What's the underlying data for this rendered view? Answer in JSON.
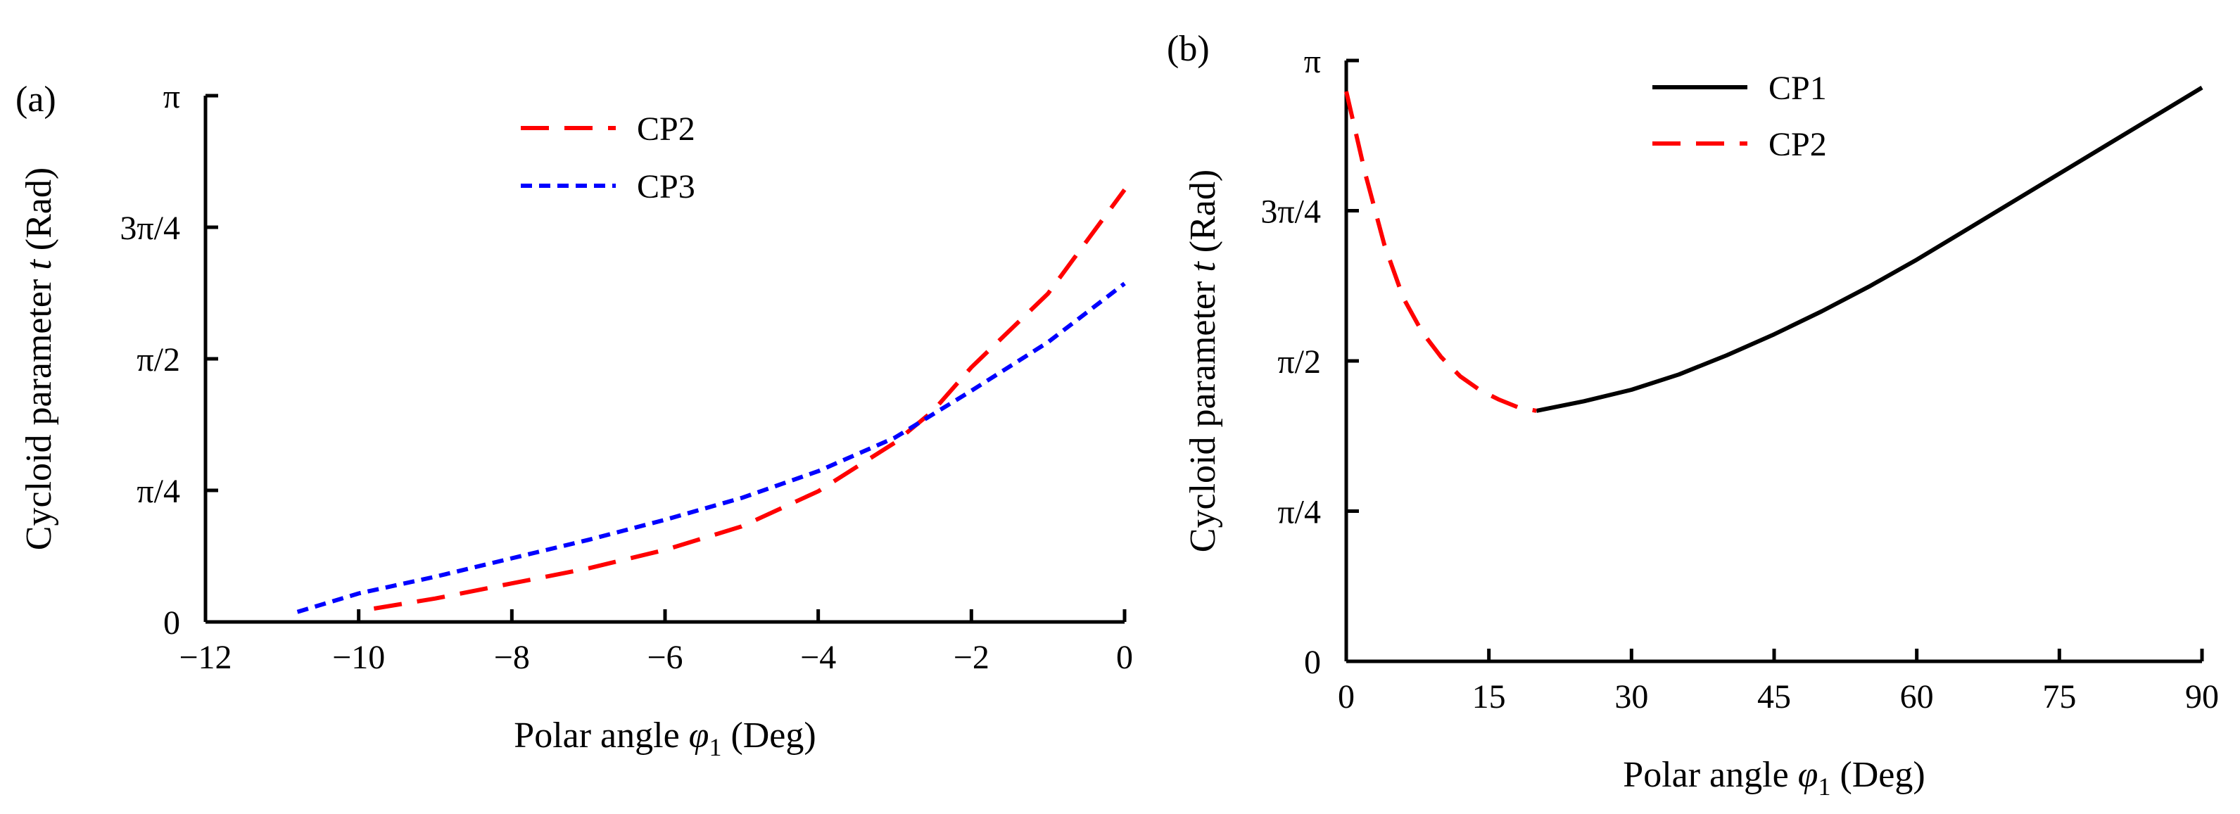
{
  "chart_data": [
    {
      "id": "a",
      "type": "line",
      "panel_label": "(a)",
      "xlabel": {
        "prefix": "Polar angle ",
        "symbol": "φ",
        "subscript": "1",
        "suffix": " (Deg)"
      },
      "ylabel": {
        "prefix": "Cycloid parameter ",
        "symbol": "t",
        "suffix": " (Rad)"
      },
      "xlim": [
        -12,
        0
      ],
      "ylim": [
        0,
        3.14159
      ],
      "xticks": [
        {
          "value": -12,
          "label": "−12"
        },
        {
          "value": -10,
          "label": "−10"
        },
        {
          "value": -8,
          "label": "−8"
        },
        {
          "value": -6,
          "label": "−6"
        },
        {
          "value": -4,
          "label": "−4"
        },
        {
          "value": -2,
          "label": "−2"
        },
        {
          "value": 0,
          "label": "0"
        }
      ],
      "yticks": [
        {
          "value": 0,
          "label": "0"
        },
        {
          "value": 0.7854,
          "label": "π/4"
        },
        {
          "value": 1.5708,
          "label": "π/2"
        },
        {
          "value": 2.3562,
          "label": "3π/4"
        },
        {
          "value": 3.14159,
          "label": "π"
        }
      ],
      "legend_position": "top-center",
      "series": [
        {
          "name": "CP2",
          "color": "#ff0000",
          "style": "long-dash",
          "x": [
            -9.8,
            -9.0,
            -8.0,
            -7.0,
            -6.0,
            -5.0,
            -4.0,
            -3.0,
            -2.5,
            -2.0,
            -1.0,
            0.0
          ],
          "y": [
            0.08,
            0.14,
            0.23,
            0.32,
            0.43,
            0.57,
            0.78,
            1.07,
            1.26,
            1.52,
            1.96,
            2.58
          ]
        },
        {
          "name": "CP3",
          "color": "#0000ff",
          "style": "short-dash",
          "x": [
            -10.8,
            -10.0,
            -9.0,
            -8.0,
            -7.0,
            -6.0,
            -5.0,
            -4.0,
            -3.0,
            -2.0,
            -1.0,
            0.0
          ],
          "y": [
            0.06,
            0.17,
            0.27,
            0.38,
            0.49,
            0.61,
            0.74,
            0.9,
            1.1,
            1.38,
            1.67,
            2.02
          ]
        }
      ]
    },
    {
      "id": "b",
      "type": "line",
      "panel_label": "(b)",
      "xlabel": {
        "prefix": "Polar angle ",
        "symbol": "φ",
        "subscript": "1",
        "suffix": " (Deg)"
      },
      "ylabel": {
        "prefix": "Cycloid parameter ",
        "symbol": "t",
        "suffix": " (Rad)"
      },
      "xlim": [
        0,
        90
      ],
      "ylim": [
        0,
        3.14159
      ],
      "xticks": [
        {
          "value": 0,
          "label": "0"
        },
        {
          "value": 15,
          "label": "15"
        },
        {
          "value": 30,
          "label": "30"
        },
        {
          "value": 45,
          "label": "45"
        },
        {
          "value": 60,
          "label": "60"
        },
        {
          "value": 75,
          "label": "75"
        },
        {
          "value": 90,
          "label": "90"
        }
      ],
      "yticks": [
        {
          "value": 0,
          "label": "0"
        },
        {
          "value": 0.7854,
          "label": "π/4"
        },
        {
          "value": 1.5708,
          "label": "π/2"
        },
        {
          "value": 2.3562,
          "label": "3π/4"
        },
        {
          "value": 3.14159,
          "label": "π"
        }
      ],
      "legend_position": "top-center",
      "series": [
        {
          "name": "CP1",
          "color": "#000000",
          "style": "solid",
          "x": [
            20,
            25,
            30,
            35,
            40,
            45,
            50,
            55,
            60,
            65,
            70,
            75,
            80,
            85,
            90
          ],
          "y": [
            1.31,
            1.36,
            1.42,
            1.5,
            1.6,
            1.71,
            1.83,
            1.96,
            2.1,
            2.25,
            2.4,
            2.55,
            2.7,
            2.85,
            3.0
          ]
        },
        {
          "name": "CP2",
          "color": "#ff0000",
          "style": "long-dash",
          "x": [
            0,
            2,
            4,
            6,
            8,
            10,
            12,
            14,
            16,
            18,
            20
          ],
          "y": [
            2.98,
            2.55,
            2.18,
            1.9,
            1.72,
            1.59,
            1.49,
            1.42,
            1.37,
            1.33,
            1.31
          ]
        }
      ]
    }
  ]
}
